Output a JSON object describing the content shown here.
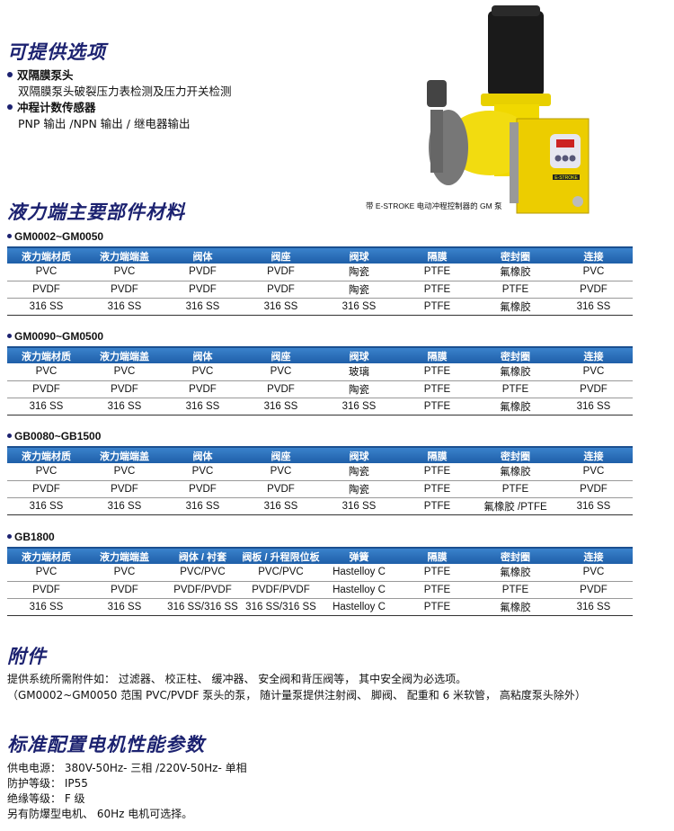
{
  "options": {
    "title": "可提供选项",
    "items": [
      {
        "label": "双隔膜泵头",
        "desc": "双隔膜泵头破裂压力表检测及压力开关检测"
      },
      {
        "label": "冲程计数传感器",
        "desc": "PNP 输出 /NPN 输出 / 继电器输出"
      }
    ]
  },
  "image": {
    "caption": "带 E-STROKE 电动冲程控制器的 GM 泵",
    "logo": "E-STROKE"
  },
  "materials": {
    "title": "液力端主要部件材料",
    "tables": [
      {
        "model": "GM0002~GM0050",
        "headers": [
          "液力端材质",
          "液力端端盖",
          "阀体",
          "阀座",
          "阀球",
          "隔膜",
          "密封圈",
          "连接"
        ],
        "rows": [
          [
            "PVC",
            "PVC",
            "PVDF",
            "PVDF",
            "陶瓷",
            "PTFE",
            "氟橡胶",
            "PVC"
          ],
          [
            "PVDF",
            "PVDF",
            "PVDF",
            "PVDF",
            "陶瓷",
            "PTFE",
            "PTFE",
            "PVDF"
          ],
          [
            "316 SS",
            "316 SS",
            "316 SS",
            "316 SS",
            "316 SS",
            "PTFE",
            "氟橡胶",
            "316 SS"
          ]
        ]
      },
      {
        "model": "GM0090~GM0500",
        "headers": [
          "液力端材质",
          "液力端端盖",
          "阀体",
          "阀座",
          "阀球",
          "隔膜",
          "密封圈",
          "连接"
        ],
        "rows": [
          [
            "PVC",
            "PVC",
            "PVC",
            "PVC",
            "玻璃",
            "PTFE",
            "氟橡胶",
            "PVC"
          ],
          [
            "PVDF",
            "PVDF",
            "PVDF",
            "PVDF",
            "陶瓷",
            "PTFE",
            "PTFE",
            "PVDF"
          ],
          [
            "316 SS",
            "316 SS",
            "316 SS",
            "316 SS",
            "316 SS",
            "PTFE",
            "氟橡胶",
            "316 SS"
          ]
        ]
      },
      {
        "model": "GB0080~GB1500",
        "headers": [
          "液力端材质",
          "液力端端盖",
          "阀体",
          "阀座",
          "阀球",
          "隔膜",
          "密封圈",
          "连接"
        ],
        "rows": [
          [
            "PVC",
            "PVC",
            "PVC",
            "PVC",
            "陶瓷",
            "PTFE",
            "氟橡胶",
            "PVC"
          ],
          [
            "PVDF",
            "PVDF",
            "PVDF",
            "PVDF",
            "陶瓷",
            "PTFE",
            "PTFE",
            "PVDF"
          ],
          [
            "316 SS",
            "316 SS",
            "316 SS",
            "316 SS",
            "316 SS",
            "PTFE",
            "氟橡胶 /PTFE",
            "316 SS"
          ]
        ]
      },
      {
        "model": "GB1800",
        "headers": [
          "液力端材质",
          "液力端端盖",
          "阀体 / 衬套",
          "阀板 / 升程限位板",
          "弹簧",
          "隔膜",
          "密封圈",
          "连接"
        ],
        "rows": [
          [
            "PVC",
            "PVC",
            "PVC/PVC",
            "PVC/PVC",
            "Hastelloy C",
            "PTFE",
            "氟橡胶",
            "PVC"
          ],
          [
            "PVDF",
            "PVDF",
            "PVDF/PVDF",
            "PVDF/PVDF",
            "Hastelloy C",
            "PTFE",
            "PTFE",
            "PVDF"
          ],
          [
            "316 SS",
            "316 SS",
            "316 SS/316 SS",
            "316 SS/316 SS",
            "Hastelloy C",
            "PTFE",
            "氟橡胶",
            "316 SS"
          ]
        ]
      }
    ]
  },
  "accessories": {
    "title": "附件",
    "line1": "提供系统所需附件如： 过滤器、 校正柱、 缓冲器、 安全阀和背压阀等， 其中安全阀为必选项。",
    "line2": "（GM0002~GM0050 范围 PVC/PVDF 泵头的泵， 随计量泵提供注射阀、 脚阀、 配重和 6 米软管， 高粘度泵头除外）"
  },
  "motor": {
    "title": "标准配置电机性能参数",
    "lines": [
      "供电电源： 380V-50Hz- 三相 /220V-50Hz- 单相",
      "防护等级： IP55",
      "绝缘等级： F 级",
      "另有防爆型电机、 60Hz 电机可选择。"
    ]
  }
}
